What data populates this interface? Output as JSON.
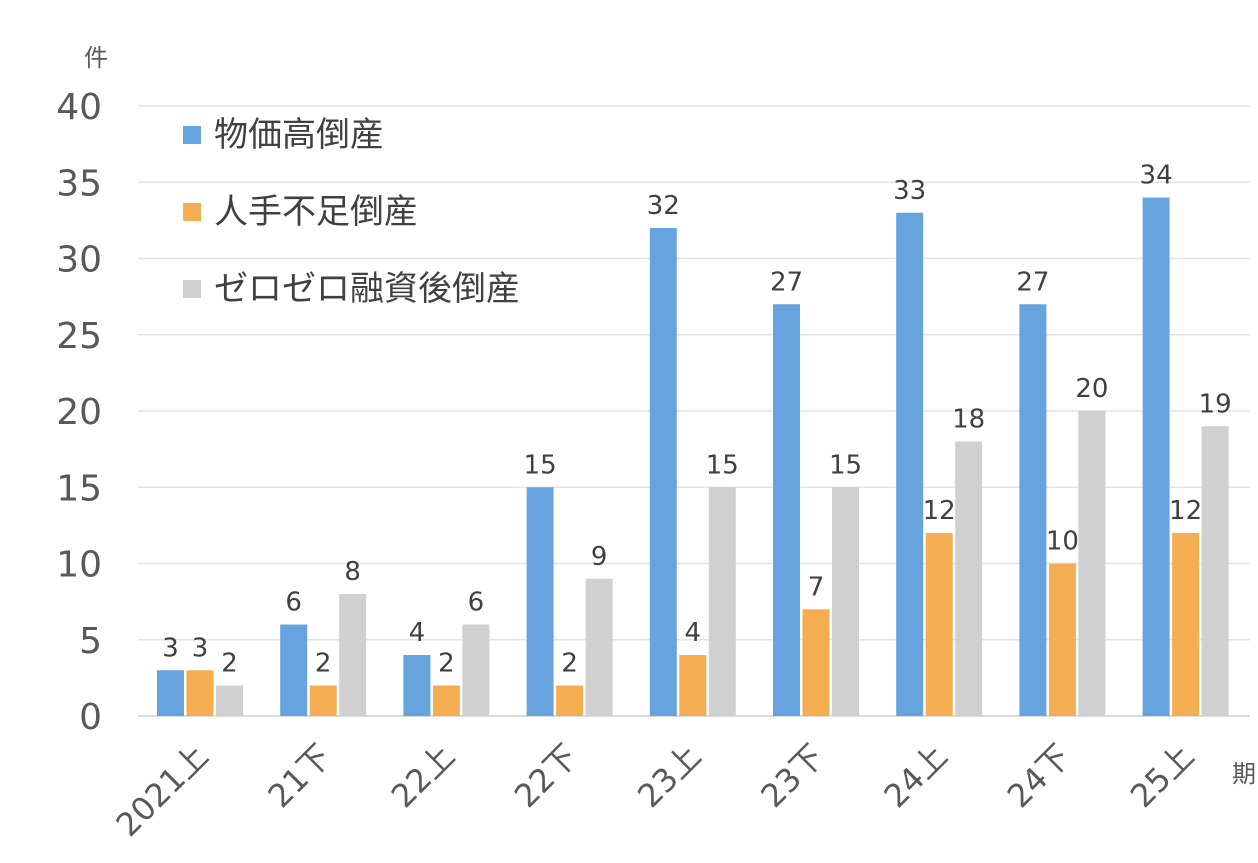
{
  "chart_data": {
    "type": "bar",
    "y_unit": "件",
    "x_unit": "期",
    "ylim": [
      0,
      40
    ],
    "yticks": [
      0,
      5,
      10,
      15,
      20,
      25,
      30,
      35,
      40
    ],
    "grid": true,
    "legend_position": "top-left",
    "categories": [
      "2021上",
      "21下",
      "22上",
      "22下",
      "23上",
      "23下",
      "24上",
      "24下",
      "25上"
    ],
    "series": [
      {
        "name": "物価高倒産",
        "color": "#66a3df",
        "values": [
          3,
          6,
          4,
          15,
          32,
          27,
          33,
          27,
          34
        ]
      },
      {
        "name": "人手不足倒産",
        "color": "#f5ad52",
        "values": [
          3,
          2,
          2,
          2,
          4,
          7,
          12,
          10,
          12
        ]
      },
      {
        "name": "ゼロゼロ融資後倒産",
        "color": "#d0d0d0",
        "values": [
          2,
          8,
          6,
          9,
          15,
          15,
          18,
          20,
          19
        ]
      }
    ]
  }
}
